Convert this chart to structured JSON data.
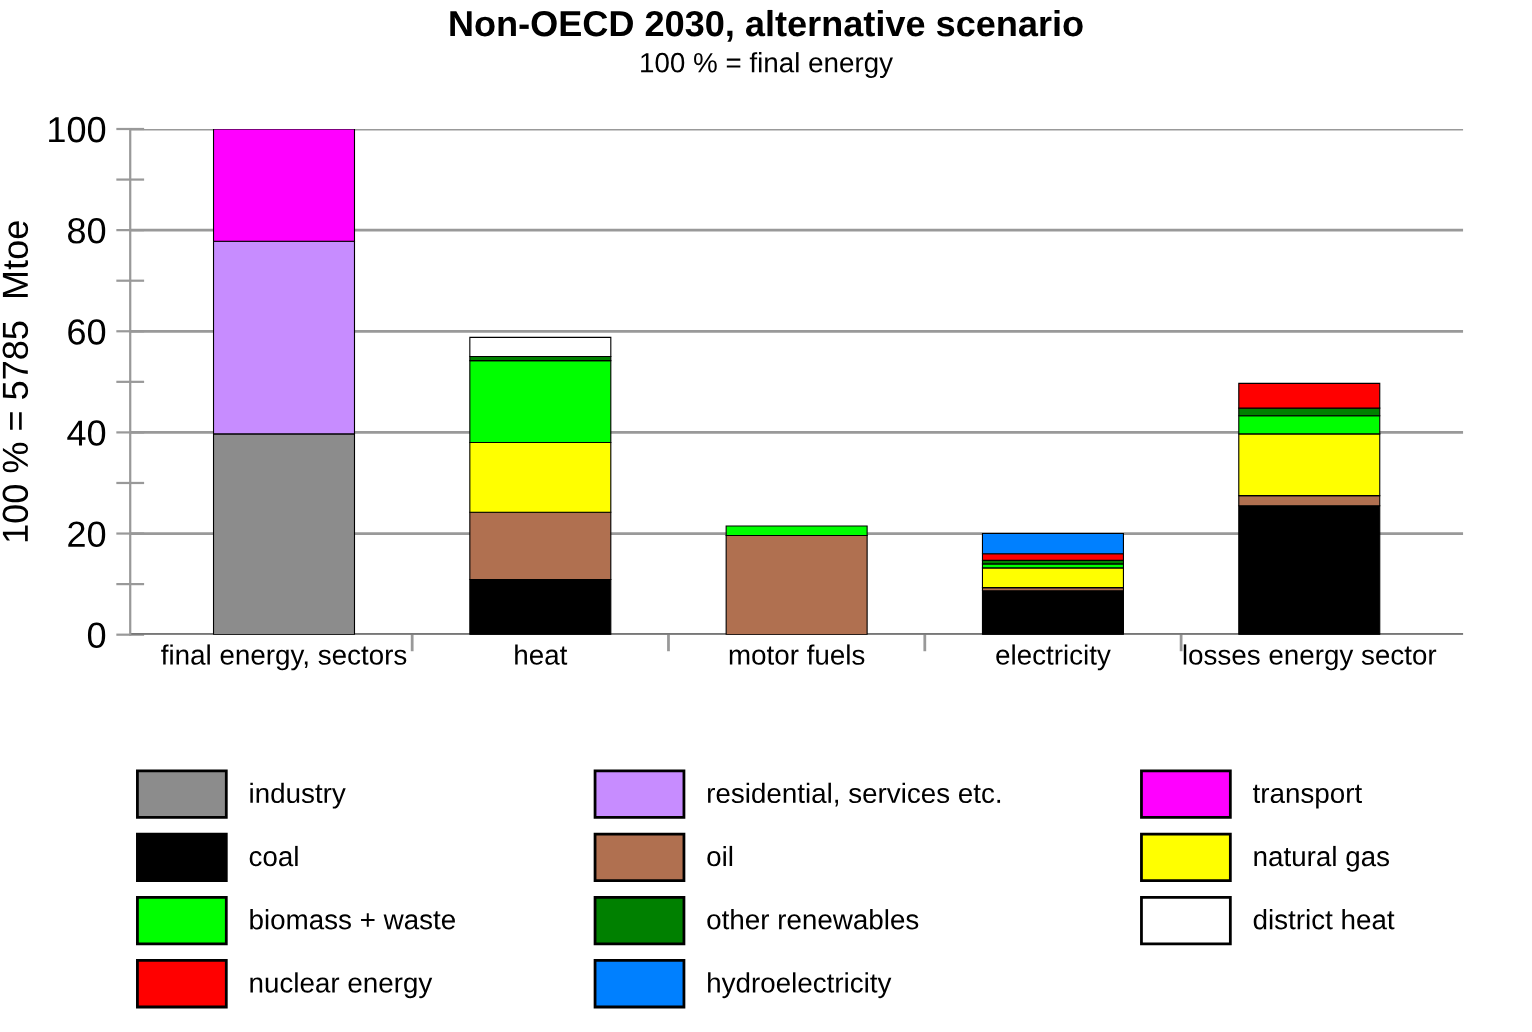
{
  "chart_data": {
    "type": "bar",
    "stacked": true,
    "title": "Non-OECD 2030, alternative scenario",
    "subtitle": "100 % = final energy",
    "ylabel": "100 % = 5785  Mtoe",
    "categories": [
      "final energy, sectors",
      "heat",
      "motor fuels",
      "electricity",
      "losses energy sector"
    ],
    "ylim": [
      0,
      100
    ],
    "yticks": [
      0,
      {
        "value": 10,
        "label": null
      },
      20,
      {
        "value": 30,
        "label": null
      },
      40,
      {
        "value": 50,
        "label": null
      },
      60,
      {
        "value": 70,
        "label": null
      },
      80,
      {
        "value": 90,
        "label": null
      },
      100
    ],
    "grid": "y",
    "legend": "bottom",
    "series": [
      {
        "name": "industry",
        "color": "#8c8c8c",
        "values": [
          39.7,
          null,
          null,
          null,
          null
        ]
      },
      {
        "name": "residential, services etc.",
        "color": "#c78cff",
        "values": [
          38.1,
          null,
          null,
          null,
          null
        ]
      },
      {
        "name": "transport",
        "color": "#ff00ff",
        "values": [
          22.2,
          null,
          null,
          null,
          null
        ]
      },
      {
        "name": "coal",
        "color": "#000000",
        "values": [
          null,
          10.9,
          null,
          8.7,
          25.5
        ]
      },
      {
        "name": "oil",
        "color": "#b07050",
        "values": [
          null,
          13.3,
          19.6,
          0.6,
          2.0
        ]
      },
      {
        "name": "natural gas",
        "color": "#ffff00",
        "values": [
          null,
          13.8,
          null,
          3.9,
          12.2
        ]
      },
      {
        "name": "biomass + waste",
        "color": "#00ff00",
        "values": [
          null,
          16.2,
          1.9,
          0.8,
          3.6
        ]
      },
      {
        "name": "other renewables",
        "color": "#008000",
        "values": [
          null,
          0.8,
          null,
          0.7,
          1.5
        ]
      },
      {
        "name": "district heat",
        "color": "#ffffff",
        "values": [
          null,
          3.8,
          null,
          null,
          null
        ]
      },
      {
        "name": "nuclear energy",
        "color": "#ff0000",
        "values": [
          null,
          null,
          null,
          1.3,
          4.9
        ]
      },
      {
        "name": "hydroelectricity",
        "color": "#0080ff",
        "values": [
          null,
          null,
          null,
          4.0,
          null
        ]
      }
    ]
  }
}
